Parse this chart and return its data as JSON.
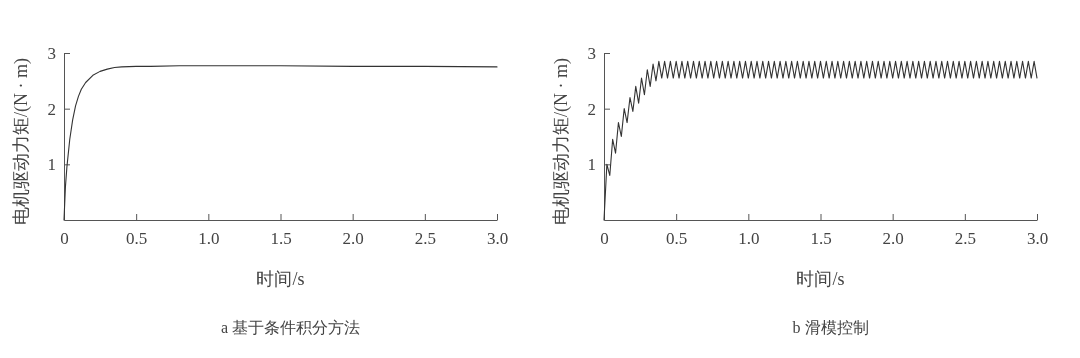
{
  "chart_data": [
    {
      "type": "line",
      "title": "a 基于条件积分方法",
      "xlabel": "时间/s",
      "ylabel": "电机驱动力矩/(N · m)",
      "xlim": [
        0,
        3
      ],
      "ylim": [
        0,
        3
      ],
      "xticks": [
        0,
        {
          "value": 0.5,
          "label": "0.5"
        },
        {
          "value": 1,
          "label": "1.0"
        },
        {
          "value": 1.5,
          "label": "1.5"
        },
        {
          "value": 2,
          "label": "2.0"
        },
        {
          "value": 2.5,
          "label": "2.5"
        },
        {
          "value": 3,
          "label": "3.0"
        }
      ],
      "yticks": [
        1,
        2,
        3
      ],
      "grid": false,
      "series": [
        {
          "color": "#333333",
          "x": [
            0,
            0.01,
            0.02,
            0.04,
            0.06,
            0.08,
            0.1,
            0.12,
            0.15,
            0.2,
            0.25,
            0.3,
            0.35,
            0.4,
            0.5,
            0.6,
            0.8,
            1.0,
            1.5,
            2.0,
            2.5,
            3.0
          ],
          "values": [
            0,
            0.6,
            0.95,
            1.45,
            1.8,
            2.05,
            2.22,
            2.35,
            2.47,
            2.6,
            2.67,
            2.71,
            2.74,
            2.75,
            2.76,
            2.76,
            2.77,
            2.77,
            2.77,
            2.76,
            2.76,
            2.75
          ]
        }
      ]
    },
    {
      "type": "line",
      "title": "b 滑模控制",
      "xlabel": "时间/s",
      "ylabel": "电机驱动力矩/(N · m)",
      "xlim": [
        0,
        3
      ],
      "ylim": [
        0,
        3
      ],
      "xticks": [
        0,
        {
          "value": 0.5,
          "label": "0.5"
        },
        {
          "value": 1,
          "label": "1.0"
        },
        {
          "value": 1.5,
          "label": "1.5"
        },
        {
          "value": 2,
          "label": "2.0"
        },
        {
          "value": 2.5,
          "label": "2.5"
        },
        {
          "value": 3,
          "label": "3.0"
        }
      ],
      "yticks": [
        1,
        2,
        3
      ],
      "grid": false,
      "series": [
        {
          "color": "#333333",
          "x": [
            0,
            0.02,
            0.04,
            0.06,
            0.08,
            0.1,
            0.12,
            0.14,
            0.16,
            0.18,
            0.2,
            0.22,
            0.24,
            0.26,
            0.28,
            0.3,
            0.32,
            0.34,
            0.36,
            0.38,
            0.4,
            0.42,
            0.44,
            0.46,
            0.48,
            0.5,
            0.52,
            0.54,
            0.56,
            0.58,
            0.6,
            0.62,
            0.64,
            0.66,
            0.68,
            0.7,
            0.72,
            0.74,
            0.76,
            0.78,
            0.8,
            0.82,
            0.84,
            0.86,
            0.88,
            0.9,
            0.92,
            0.94,
            0.96,
            0.98,
            1.0,
            1.02,
            1.04,
            1.06,
            1.08,
            1.1,
            1.12,
            1.14,
            1.16,
            1.18,
            1.2,
            1.22,
            1.24,
            1.26,
            1.28,
            1.3,
            1.32,
            1.34,
            1.36,
            1.38,
            1.4,
            1.42,
            1.44,
            1.46,
            1.48,
            1.5,
            1.52,
            1.54,
            1.56,
            1.58,
            1.6,
            1.62,
            1.64,
            1.66,
            1.68,
            1.7,
            1.72,
            1.74,
            1.76,
            1.78,
            1.8,
            1.82,
            1.84,
            1.86,
            1.88,
            1.9,
            1.92,
            1.94,
            1.96,
            1.98,
            2.0,
            2.02,
            2.04,
            2.06,
            2.08,
            2.1,
            2.12,
            2.14,
            2.16,
            2.18,
            2.2,
            2.22,
            2.24,
            2.26,
            2.28,
            2.3,
            2.32,
            2.34,
            2.36,
            2.38,
            2.4,
            2.42,
            2.44,
            2.46,
            2.48,
            2.5,
            2.52,
            2.54,
            2.56,
            2.58,
            2.6,
            2.62,
            2.64,
            2.66,
            2.68,
            2.7,
            2.72,
            2.74,
            2.76,
            2.78,
            2.8,
            2.82,
            2.84,
            2.86,
            2.88,
            2.9,
            2.92,
            2.94,
            2.96,
            2.98,
            3.0
          ],
          "values": [
            0,
            1.0,
            0.8,
            1.45,
            1.2,
            1.75,
            1.5,
            2.0,
            1.75,
            2.2,
            1.95,
            2.4,
            2.1,
            2.55,
            2.25,
            2.7,
            2.4,
            2.8,
            2.5,
            2.85,
            2.55,
            2.85,
            2.55,
            2.85,
            2.55,
            2.85,
            2.55,
            2.85,
            2.55,
            2.85,
            2.55,
            2.85,
            2.55,
            2.85,
            2.55,
            2.85,
            2.55,
            2.85,
            2.55,
            2.85,
            2.55,
            2.85,
            2.55,
            2.85,
            2.55,
            2.85,
            2.55,
            2.85,
            2.55,
            2.85,
            2.55,
            2.85,
            2.55,
            2.85,
            2.55,
            2.85,
            2.55,
            2.85,
            2.55,
            2.85,
            2.55,
            2.85,
            2.55,
            2.85,
            2.55,
            2.85,
            2.55,
            2.85,
            2.55,
            2.85,
            2.55,
            2.85,
            2.55,
            2.85,
            2.55,
            2.85,
            2.55,
            2.85,
            2.55,
            2.85,
            2.55,
            2.85,
            2.55,
            2.85,
            2.55,
            2.85,
            2.55,
            2.85,
            2.55,
            2.85,
            2.55,
            2.85,
            2.55,
            2.85,
            2.55,
            2.85,
            2.55,
            2.85,
            2.55,
            2.85,
            2.55,
            2.85,
            2.55,
            2.85,
            2.55,
            2.85,
            2.55,
            2.85,
            2.55,
            2.85,
            2.55,
            2.85,
            2.55,
            2.85,
            2.55,
            2.85,
            2.55,
            2.85,
            2.55,
            2.85,
            2.55,
            2.85,
            2.55,
            2.85,
            2.55,
            2.85,
            2.55,
            2.85,
            2.55,
            2.85,
            2.55,
            2.85,
            2.55,
            2.85,
            2.55,
            2.85,
            2.55,
            2.85,
            2.55,
            2.85,
            2.55,
            2.85,
            2.55,
            2.85,
            2.55,
            2.85,
            2.55,
            2.85,
            2.55,
            2.85,
            2.55
          ]
        }
      ]
    }
  ]
}
